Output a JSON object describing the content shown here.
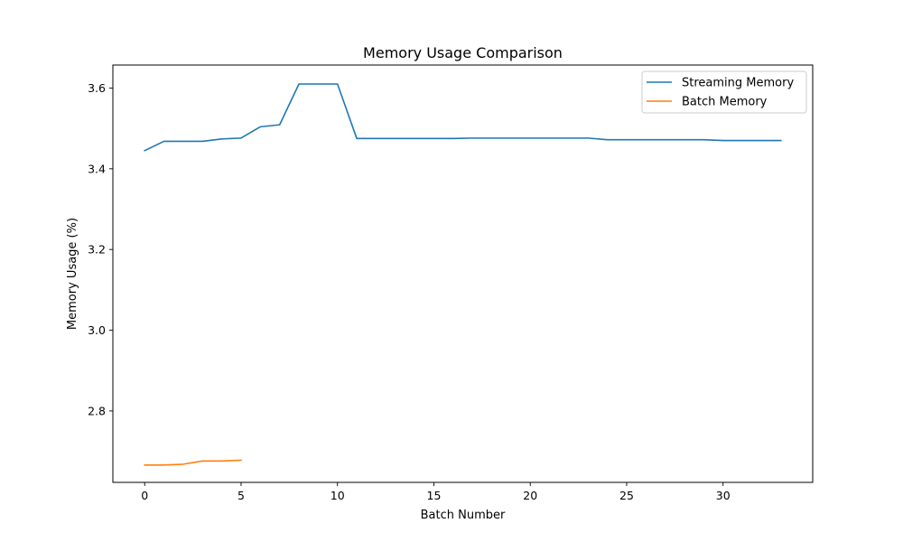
{
  "chart_data": {
    "type": "line",
    "title": "Memory Usage Comparison",
    "xlabel": "Batch Number",
    "ylabel": "Memory Usage (%)",
    "xlim": [
      -1.65,
      34.65
    ],
    "ylim": [
      2.623,
      3.657
    ],
    "xticks": [
      0,
      5,
      10,
      15,
      20,
      25,
      30
    ],
    "yticks": [
      2.8,
      3.0,
      3.2,
      3.4,
      3.6
    ],
    "ytick_labels": [
      "2.8",
      "3.0",
      "3.2",
      "3.4",
      "3.6"
    ],
    "grid": false,
    "legend_position": "top-right",
    "series": [
      {
        "name": "Streaming Memory",
        "color": "#1f77b4",
        "x": [
          0,
          1,
          2,
          3,
          4,
          5,
          6,
          7,
          8,
          9,
          10,
          11,
          12,
          13,
          14,
          15,
          16,
          17,
          18,
          19,
          20,
          21,
          22,
          23,
          24,
          25,
          26,
          27,
          28,
          29,
          30,
          31,
          32,
          33
        ],
        "values": [
          3.445,
          3.468,
          3.468,
          3.468,
          3.474,
          3.476,
          3.504,
          3.509,
          3.61,
          3.61,
          3.61,
          3.475,
          3.475,
          3.475,
          3.475,
          3.475,
          3.475,
          3.476,
          3.476,
          3.476,
          3.476,
          3.476,
          3.476,
          3.476,
          3.472,
          3.472,
          3.472,
          3.472,
          3.472,
          3.472,
          3.47,
          3.47,
          3.47,
          3.47
        ]
      },
      {
        "name": "Batch Memory",
        "color": "#ff7f0e",
        "x": [
          0,
          1,
          2,
          3,
          4,
          5
        ],
        "values": [
          2.666,
          2.666,
          2.668,
          2.676,
          2.676,
          2.678
        ]
      }
    ]
  }
}
